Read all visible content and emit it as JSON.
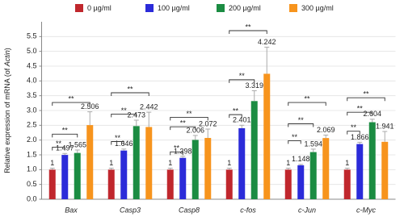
{
  "chart_data": {
    "type": "bar",
    "categories": [
      "Bax",
      "Casp3",
      "Casp8",
      "c-fos",
      "c-Jun",
      "c-Myc"
    ],
    "category_italic": true,
    "series": [
      {
        "name": "0 µg/ml",
        "color": "#c0272d",
        "values": [
          1,
          1,
          1,
          1,
          1,
          1
        ],
        "errors": [
          0.05,
          0.05,
          0.05,
          0.05,
          0.05,
          0.05
        ]
      },
      {
        "name": "100 µg/ml",
        "color": "#2b2bd9",
        "values": [
          1.497,
          1.646,
          1.398,
          2.401,
          1.148,
          1.866
        ],
        "errors": [
          0.05,
          0.05,
          0.05,
          0.1,
          0.03,
          0.06
        ]
      },
      {
        "name": "200 µg/ml",
        "color": "#1b8c42",
        "values": [
          1.565,
          2.473,
          2.006,
          3.319,
          1.594,
          2.604
        ],
        "errors": [
          0.1,
          0.2,
          0.15,
          0.35,
          0.1,
          0.1
        ]
      },
      {
        "name": "300 µg/ml",
        "color": "#f7941d",
        "values": [
          2.506,
          2.442,
          2.072,
          4.242,
          2.069,
          1.941
        ],
        "errors": [
          0.45,
          0.5,
          0.3,
          0.9,
          0.1,
          0.35
        ]
      }
    ],
    "ylabel": [
      {
        "text": "Relative expression of mRNA (of ",
        "italic": false
      },
      {
        "text": "Actin",
        "italic": true
      },
      {
        "text": ")",
        "italic": false
      }
    ],
    "ylim": [
      0,
      6
    ],
    "yticks": [
      {
        "value": 0,
        "label": "0.0"
      },
      0.5,
      {
        "value": 1,
        "label": "1.0"
      },
      1.5,
      {
        "value": 2,
        "label": "2.0"
      },
      2.5,
      {
        "value": 3,
        "label": "3.0"
      },
      3.5,
      {
        "value": 4,
        "label": "4.0"
      },
      4.5,
      {
        "value": 5,
        "label": "5.0"
      },
      5.5
    ],
    "grid": true,
    "legend": "top",
    "annotations": [
      {
        "category": 0,
        "from": 0,
        "to": 1,
        "y": 1.76,
        "label": "**"
      },
      {
        "category": 0,
        "from": 0,
        "to": 2,
        "y": 2.2,
        "label": "**"
      },
      {
        "category": 0,
        "from": 0,
        "to": 3,
        "y": 3.27,
        "label": "**"
      },
      {
        "category": 1,
        "from": 0,
        "to": 1,
        "y": 1.95,
        "label": "**"
      },
      {
        "category": 1,
        "from": 0,
        "to": 2,
        "y": 2.88,
        "label": "**"
      },
      {
        "category": 1,
        "from": 0,
        "to": 3,
        "y": 3.6,
        "label": "**"
      },
      {
        "category": 2,
        "from": 0,
        "to": 1,
        "y": 1.6,
        "label": "**"
      },
      {
        "category": 2,
        "from": 0,
        "to": 2,
        "y": 2.45,
        "label": "**"
      },
      {
        "category": 2,
        "from": 0,
        "to": 3,
        "y": 2.77,
        "label": "**"
      },
      {
        "category": 3,
        "from": 0,
        "to": 1,
        "y": 2.86,
        "label": "**"
      },
      {
        "category": 3,
        "from": 0,
        "to": 2,
        "y": 4.04,
        "label": "**"
      },
      {
        "category": 3,
        "from": 0,
        "to": 3,
        "y": 5.7,
        "label": "**"
      },
      {
        "category": 4,
        "from": 0,
        "to": 1,
        "y": 1.98,
        "label": "**"
      },
      {
        "category": 4,
        "from": 0,
        "to": 2,
        "y": 2.55,
        "label": "**"
      },
      {
        "category": 4,
        "from": 0,
        "to": 3,
        "y": 3.27,
        "label": "**"
      },
      {
        "category": 5,
        "from": 0,
        "to": 1,
        "y": 2.3,
        "label": "**"
      },
      {
        "category": 5,
        "from": 0,
        "to": 2,
        "y": 2.94,
        "label": "**"
      },
      {
        "category": 5,
        "from": 0,
        "to": 3,
        "y": 3.43,
        "label": "**"
      }
    ]
  }
}
